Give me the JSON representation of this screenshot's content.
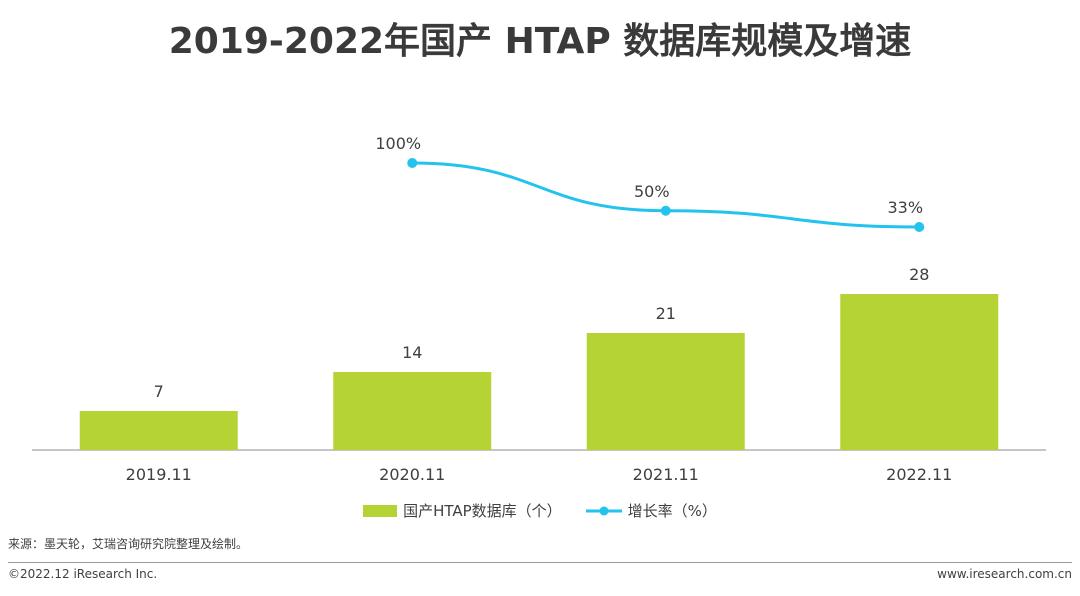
{
  "title": "2019-2022年国产 HTAP 数据库规模及增速",
  "colors": {
    "bar": "#b5d334",
    "line": "#22c3ee",
    "axis": "#8c8c8c",
    "text": "#404040"
  },
  "legend": {
    "bar_label": "国产HTAP数据库（个）",
    "line_label": "增长率（%）"
  },
  "source": "来源：墨天轮，艾瑞咨询研究院整理及绘制。",
  "footer": {
    "copyright": "©2022.12 iResearch Inc.",
    "website": "www.iresearch.com.cn"
  },
  "chart_data": {
    "type": "bar",
    "categories": [
      "2019.11",
      "2020.11",
      "2021.11",
      "2022.11"
    ],
    "series": [
      {
        "name": "国产HTAP数据库（个）",
        "type": "bar",
        "values": [
          7,
          14,
          21,
          28
        ],
        "labels": [
          "7",
          "14",
          "21",
          "28"
        ]
      },
      {
        "name": "增长率（%）",
        "type": "line",
        "values": [
          null,
          100,
          50,
          33
        ],
        "labels": [
          "",
          "100%",
          "50%",
          "33%"
        ]
      }
    ],
    "title": "2019-2022年国产 HTAP 数据库规模及增速",
    "grid": false,
    "legend_position": "bottom"
  }
}
